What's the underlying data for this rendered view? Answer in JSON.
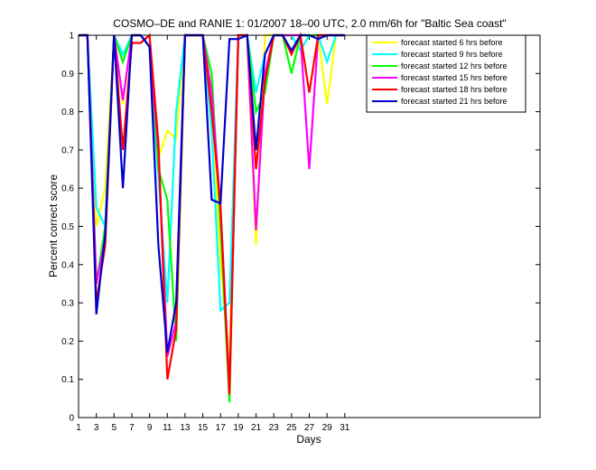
{
  "chart_data": {
    "type": "line",
    "title": "COSMO–DE and RANIE 1: 01/2007 18–00 UTC, 2.0 mm/6h for \"Baltic Sea coast\"",
    "xlabel": "Days",
    "ylabel": "Percent correct score",
    "xlim": [
      1,
      53
    ],
    "ylim": [
      0,
      1
    ],
    "xticks": [
      1,
      3,
      5,
      7,
      9,
      11,
      13,
      15,
      17,
      19,
      21,
      23,
      25,
      27,
      29,
      31
    ],
    "yticks": [
      0,
      0.1,
      0.2,
      0.3,
      0.4,
      0.5,
      0.6,
      0.7,
      0.8,
      0.9,
      1
    ],
    "ytick_labels": [
      "0",
      "0.1",
      "0.2",
      "0.3",
      "0.4",
      "0.5",
      "0.6",
      "0.7",
      "0.8",
      "0.9",
      "1"
    ],
    "legend_position": "top-right",
    "x": [
      1,
      2,
      3,
      4,
      5,
      6,
      7,
      8,
      9,
      10,
      11,
      12,
      13,
      14,
      15,
      16,
      17,
      18,
      19,
      20,
      21,
      22,
      23,
      24,
      25,
      26,
      27,
      28,
      29,
      30,
      31
    ],
    "series": [
      {
        "name": "forecast started 6 hrs before",
        "color": "#ffff00",
        "values": [
          1,
          1,
          0.5,
          0.6,
          1,
          0.82,
          1,
          1,
          0.97,
          0.68,
          0.75,
          0.73,
          1,
          1,
          1,
          0.85,
          0.4,
          0.15,
          1,
          1,
          0.45,
          1,
          1,
          1,
          1,
          1,
          1,
          1,
          0.82,
          1,
          1
        ]
      },
      {
        "name": "forecast started 9 hrs before",
        "color": "#00ffff",
        "values": [
          1,
          1,
          0.55,
          0.5,
          1,
          0.95,
          1,
          1,
          0.97,
          0.63,
          0.3,
          0.8,
          1,
          1,
          1,
          0.75,
          0.28,
          0.3,
          1,
          1,
          0.85,
          0.95,
          1,
          1,
          1,
          0.96,
          1,
          1,
          0.93,
          1,
          1
        ]
      },
      {
        "name": "forecast started 12 hrs before",
        "color": "#00ff00",
        "values": [
          1,
          1,
          0.35,
          0.5,
          1,
          0.93,
          1,
          1,
          0.97,
          0.65,
          0.57,
          0.2,
          1,
          1,
          1,
          0.9,
          0.5,
          0.04,
          1,
          1,
          0.8,
          0.85,
          1,
          1,
          0.9,
          1,
          1,
          1,
          1,
          1,
          1
        ]
      },
      {
        "name": "forecast started 15 hrs before",
        "color": "#ff00ff",
        "values": [
          1,
          1,
          0.35,
          0.47,
          1,
          0.83,
          1,
          1,
          0.97,
          0.7,
          0.16,
          0.25,
          1,
          1,
          1,
          0.85,
          0.55,
          0.08,
          1,
          1,
          0.49,
          0.9,
          1,
          1,
          1,
          1,
          0.65,
          1,
          1,
          1,
          1
        ]
      },
      {
        "name": "forecast started 18 hrs before",
        "color": "#ff0000",
        "values": [
          1,
          1,
          0.3,
          0.45,
          1,
          0.7,
          0.98,
          0.98,
          1,
          0.72,
          0.1,
          0.23,
          1,
          1,
          1,
          0.8,
          0.55,
          0.06,
          1,
          1,
          0.65,
          0.88,
          1,
          1,
          0.95,
          1,
          0.85,
          1,
          1,
          1,
          1
        ]
      },
      {
        "name": "forecast started 21 hrs before",
        "color": "#0000cc",
        "values": [
          1,
          1,
          0.27,
          0.48,
          1,
          0.6,
          1,
          1,
          0.97,
          0.45,
          0.17,
          0.3,
          1,
          1,
          1,
          0.57,
          0.56,
          0.99,
          0.99,
          1,
          0.7,
          0.95,
          1,
          1,
          0.96,
          1,
          1,
          0.99,
          1,
          1,
          1
        ]
      }
    ]
  }
}
